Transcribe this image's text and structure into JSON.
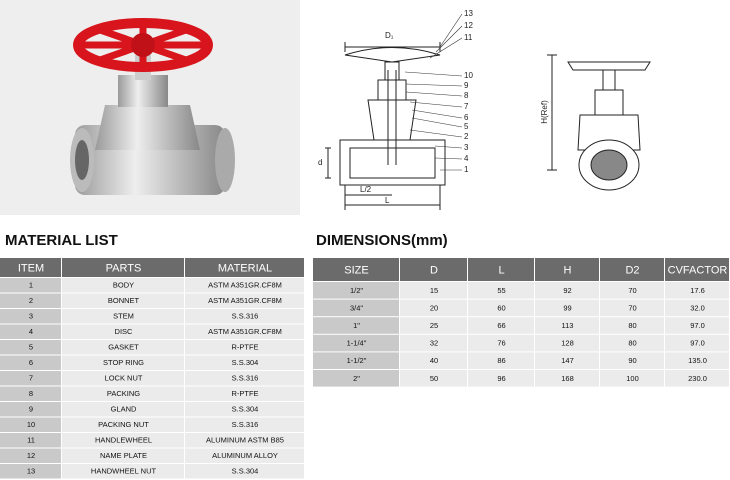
{
  "drawing": {
    "callouts": [
      "13",
      "12",
      "11",
      "10",
      "9",
      "8",
      "7",
      "6",
      "5",
      "2",
      "3",
      "4",
      "1"
    ],
    "d1": "D₁",
    "d": "d",
    "half_l": "L/2",
    "l": "L",
    "h": "H(Ref)"
  },
  "material_list": {
    "title": "MATERIAL LIST",
    "headers": [
      "ITEM",
      "PARTS",
      "MATERIAL"
    ],
    "rows": [
      [
        "1",
        "BODY",
        "ASTM A351GR.CF8M"
      ],
      [
        "2",
        "BONNET",
        "ASTM A351GR.CF8M"
      ],
      [
        "3",
        "STEM",
        "S.S.316"
      ],
      [
        "4",
        "DISC",
        "ASTM A351GR.CF8M"
      ],
      [
        "5",
        "GASKET",
        "R-PTFE"
      ],
      [
        "6",
        "STOP RING",
        "S.S.304"
      ],
      [
        "7",
        "LOCK NUT",
        "S.S.316"
      ],
      [
        "8",
        "PACKING",
        "R-PTFE"
      ],
      [
        "9",
        "GLAND",
        "S.S.304"
      ],
      [
        "10",
        "PACKING NUT",
        "S.S.316"
      ],
      [
        "11",
        "HANDLEWHEEL",
        "ALUMINUM ASTM B85"
      ],
      [
        "12",
        "NAME PLATE",
        "ALUMINUM ALLOY"
      ],
      [
        "13",
        "HANDWHEEL NUT",
        "S.S.304"
      ]
    ]
  },
  "dimensions": {
    "title": "DIMENSIONS(mm)",
    "headers": [
      "SIZE",
      "D",
      "L",
      "H",
      "D2",
      "CVFACTOR"
    ],
    "rows": [
      [
        "1/2\"",
        "15",
        "55",
        "92",
        "70",
        "17.6"
      ],
      [
        "3/4\"",
        "20",
        "60",
        "99",
        "70",
        "32.0"
      ],
      [
        "1\"",
        "25",
        "66",
        "113",
        "80",
        "97.0"
      ],
      [
        "1-1/4\"",
        "32",
        "76",
        "128",
        "80",
        "97.0"
      ],
      [
        "1-1/2\"",
        "40",
        "86",
        "147",
        "90",
        "135.0"
      ],
      [
        "2\"",
        "50",
        "96",
        "168",
        "100",
        "230.0"
      ]
    ]
  }
}
